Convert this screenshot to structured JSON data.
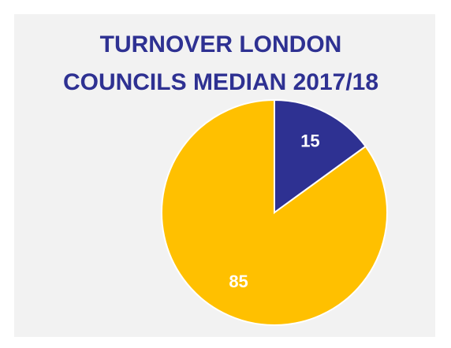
{
  "chart_data": {
    "type": "pie",
    "title": [
      "TURNOVER LONDON",
      "COUNCILS MEDIAN 2017/18"
    ],
    "values": [
      15,
      85
    ],
    "colors": [
      "#2e3192",
      "#ffc000"
    ],
    "start_angle": 0,
    "direction": "clockwise"
  }
}
